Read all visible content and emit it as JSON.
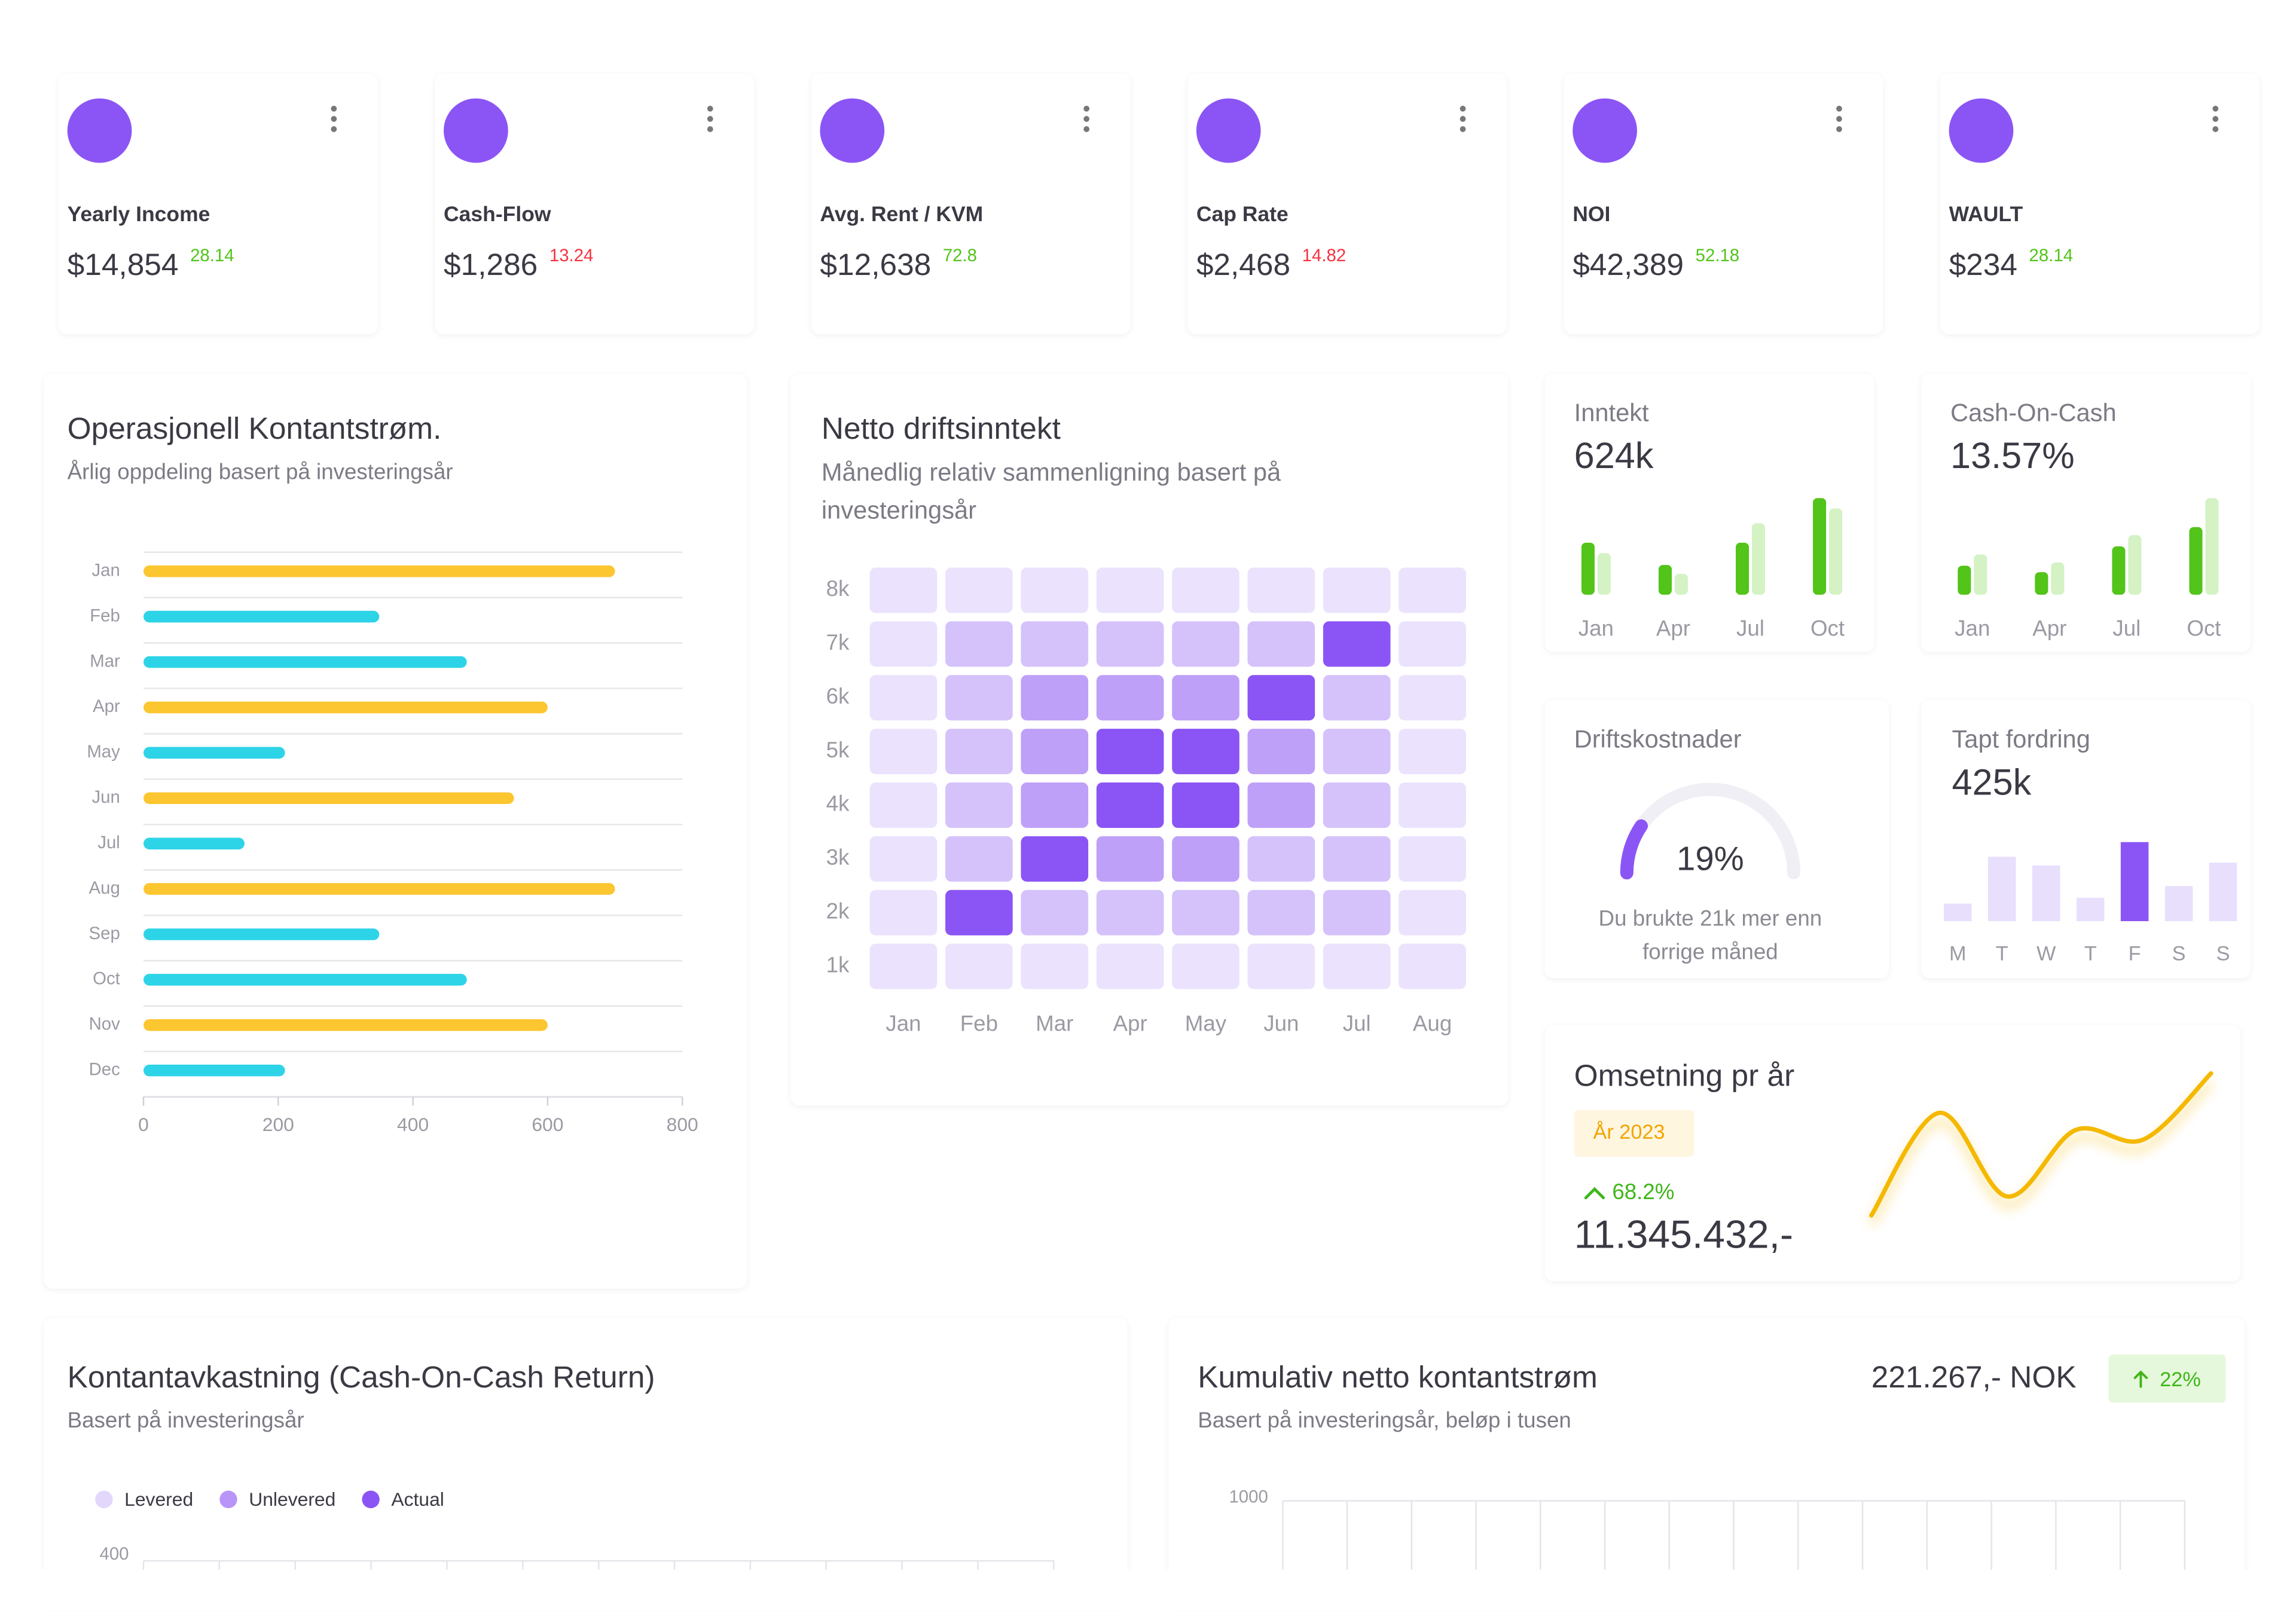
{
  "kpis": [
    {
      "label": "Yearly Income",
      "value": "$14,854",
      "change": 28.14,
      "color": "#52c41a"
    },
    {
      "label": "Cash-Flow",
      "value": "$1,286",
      "change": 13.24,
      "color": "#f5333f"
    },
    {
      "label": "Avg. Rent / KVM",
      "value": "$12,638",
      "change": 72.8,
      "color": "#52c41a"
    },
    {
      "label": "Cap Rate",
      "value": "$2,468",
      "change": 14.82,
      "color": "#f5333f"
    },
    {
      "label": "NOI",
      "value": "$42,389",
      "change": 52.18,
      "color": "#52c41a"
    },
    {
      "label": "WAULT",
      "value": "$234",
      "change": 28.14,
      "color": "#52c41a"
    }
  ],
  "chart_data": [
    {
      "type": "hbar",
      "title": "Operasjonell Kontantstrøm.",
      "subtitle": "Årlig oppdeling basert på investeringsår",
      "categories": [
        "Jan",
        "Feb",
        "Mar",
        "Apr",
        "May",
        "Jun",
        "Jul",
        "Aug",
        "Sep",
        "Oct",
        "Nov",
        "Dec"
      ],
      "values": [
        700,
        350,
        480,
        600,
        210,
        550,
        150,
        700,
        350,
        480,
        600,
        210
      ],
      "colors": [
        "#fcc630",
        "#2dd4e8",
        "#2dd4e8",
        "#fcc630",
        "#2dd4e8",
        "#fcc630",
        "#2dd4e8",
        "#fcc630",
        "#2dd4e8",
        "#2dd4e8",
        "#fcc630",
        "#2dd4e8"
      ],
      "xlim": [
        0,
        800
      ],
      "xticks": [
        0,
        200,
        400,
        600,
        800
      ]
    },
    {
      "type": "heatmap",
      "title": "Netto driftsinntekt",
      "subtitle": "Månedlig relativ sammenligning basert på investeringsår",
      "x": [
        "Jan",
        "Feb",
        "Mar",
        "Apr",
        "May",
        "Jun",
        "Jul",
        "Aug"
      ],
      "y": [
        "8k",
        "7k",
        "6k",
        "5k",
        "4k",
        "3k",
        "2k",
        "1k"
      ],
      "values": [
        [
          1,
          1,
          1,
          1,
          1,
          1,
          1,
          1
        ],
        [
          1,
          2,
          2,
          2,
          2,
          2,
          5,
          1
        ],
        [
          1,
          2,
          3,
          3,
          3,
          5,
          2,
          1
        ],
        [
          1,
          2,
          3,
          5,
          5,
          3,
          2,
          1
        ],
        [
          1,
          2,
          3,
          5,
          5,
          3,
          2,
          1
        ],
        [
          1,
          2,
          5,
          3,
          3,
          2,
          2,
          1
        ],
        [
          1,
          5,
          2,
          2,
          2,
          2,
          2,
          1
        ],
        [
          1,
          1,
          1,
          1,
          1,
          1,
          1,
          1
        ]
      ],
      "colors": [
        "#ebe3fd",
        "#d5c2fb",
        "#bfa0f8",
        "#a57cf6",
        "#8b55f5"
      ]
    },
    {
      "type": "pair-bar",
      "title": "Inntekt",
      "value": "624k",
      "categories": [
        "Jan",
        "Apr",
        "Jul",
        "Oct"
      ],
      "series": [
        {
          "color": "#52c41a",
          "values": [
            35,
            20,
            35,
            65
          ]
        },
        {
          "color": "#d4f2c4",
          "values": [
            28,
            14,
            48,
            58
          ]
        }
      ]
    },
    {
      "type": "pair-bar",
      "title": "Cash-On-Cash",
      "value": "13.57%",
      "categories": [
        "Jan",
        "Apr",
        "Jul",
        "Oct"
      ],
      "series": [
        {
          "color": "#52c41a",
          "values": [
            18,
            14,
            30,
            42
          ]
        },
        {
          "color": "#d4f2c4",
          "values": [
            25,
            20,
            37,
            60
          ]
        }
      ]
    },
    {
      "type": "gauge",
      "title": "Driftskostnader",
      "value": 19,
      "value_label": "19%",
      "color": "#8b55f5",
      "note": "Du brukte 21k mer enn forrige måned"
    },
    {
      "type": "bar",
      "title": "Tapt fordring",
      "value": "425k",
      "categories": [
        "M",
        "T",
        "W",
        "T",
        "F",
        "S",
        "S"
      ],
      "values": [
        12,
        44,
        38,
        16,
        54,
        24,
        40
      ],
      "colors": [
        "#e8dffd",
        "#e8dffd",
        "#e8dffd",
        "#e8dffd",
        "#8b55f5",
        "#e8dffd",
        "#e8dffd"
      ]
    },
    {
      "type": "line",
      "title": "Omsetning pr år",
      "badge": "År 2023",
      "badge_color": "#f0a500",
      "badge_fill": "#fff6e0",
      "change": "68.2%",
      "total": "11.345.432,-",
      "values": [
        10,
        75,
        22,
        64,
        58,
        100
      ],
      "color": "#f5b800"
    },
    {
      "type": "column",
      "title": "Kontantavkastning (Cash-On-Cash Return)",
      "subtitle": "Basert på investeringsår",
      "series": [
        {
          "name": "Levered",
          "color": "#e3d8fc"
        },
        {
          "name": "Unlevered",
          "color": "#b995f8"
        },
        {
          "name": "Actual",
          "color": "#8b55f5"
        }
      ],
      "yticks": [
        400
      ]
    },
    {
      "type": "line",
      "title": "Kumulativ netto kontantstrøm",
      "subtitle": "Basert på investeringsår, beløp i tusen",
      "total": "221.267,- NOK",
      "badge": "22%",
      "badge_color": "#3fb618",
      "badge_fill": "#e6f8dc",
      "yticks": [
        1000
      ]
    }
  ]
}
